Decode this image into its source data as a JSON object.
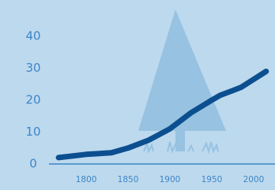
{
  "chart_data": {
    "type": "line",
    "x": [
      1767,
      1800,
      1830,
      1850,
      1875,
      1900,
      1925,
      1950,
      1960,
      1975,
      1985,
      2000,
      2015
    ],
    "values": [
      2,
      3,
      3.5,
      5,
      7.5,
      11,
      16,
      20,
      21.5,
      23,
      24,
      26.5,
      29
    ],
    "color": "#0c4f90",
    "xlim": [
      1765,
      2018
    ],
    "xticks": [
      1800,
      1850,
      1900,
      1950,
      2000
    ],
    "ylim": [
      0,
      40
    ],
    "yticks": [
      0,
      10,
      20,
      30,
      40
    ],
    "grid": false
  }
}
